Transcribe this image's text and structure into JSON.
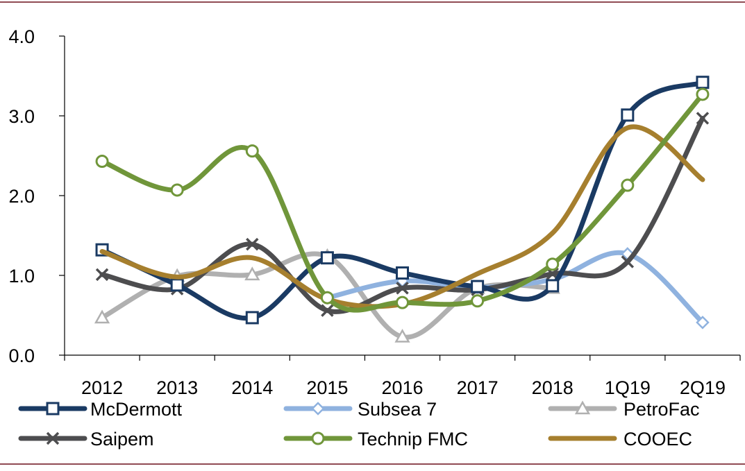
{
  "chart_data": {
    "type": "line",
    "categories": [
      "2012",
      "2013",
      "2014",
      "2015",
      "2016",
      "2017",
      "2018",
      "1Q19",
      "2Q19"
    ],
    "ylim": [
      0.0,
      4.0
    ],
    "yticks": [
      "0.0",
      "1.0",
      "2.0",
      "3.0",
      "4.0"
    ],
    "grid": false,
    "legend_position": "bottom",
    "series": [
      {
        "name": "McDermott",
        "color": "#1a3a63",
        "marker": "square",
        "values": [
          1.32,
          0.88,
          0.47,
          1.22,
          1.03,
          0.86,
          0.87,
          3.01,
          3.42
        ]
      },
      {
        "name": "Subsea 7",
        "color": "#8fb2df",
        "marker": "diamond",
        "values": [
          null,
          null,
          null,
          0.72,
          0.93,
          0.85,
          0.95,
          1.27,
          0.41
        ]
      },
      {
        "name": "PetroFac",
        "color": "#b0b0b0",
        "marker": "triangle",
        "values": [
          0.47,
          0.99,
          1.01,
          1.24,
          0.23,
          0.84,
          0.84,
          null,
          null
        ]
      },
      {
        "name": "Saipem",
        "color": "#4d4d4f",
        "marker": "x",
        "values": [
          1.01,
          0.83,
          1.39,
          0.56,
          0.84,
          0.82,
          1.02,
          1.17,
          2.97
        ]
      },
      {
        "name": "Technip FMC",
        "color": "#70963a",
        "marker": "circle",
        "values": [
          2.43,
          2.07,
          2.56,
          0.72,
          0.66,
          0.68,
          1.14,
          2.13,
          3.27
        ]
      },
      {
        "name": "COOEC",
        "color": "#a67f2e",
        "marker": "none",
        "values": [
          1.3,
          0.98,
          1.22,
          0.7,
          0.64,
          1.02,
          1.53,
          2.85,
          2.2
        ]
      }
    ]
  },
  "frame_color": "#6b0f1a"
}
